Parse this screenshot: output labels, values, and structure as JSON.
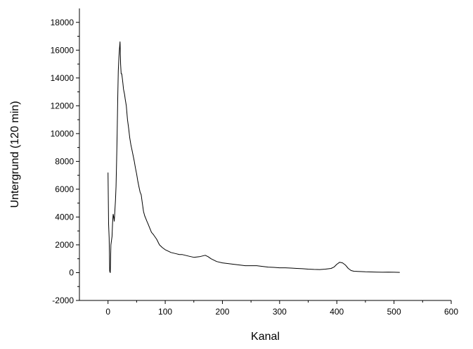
{
  "chart_data": {
    "type": "line",
    "title": "",
    "xlabel": "Kanal",
    "ylabel": "Untergrund (120 min)",
    "xlim": [
      -50,
      600
    ],
    "ylim": [
      -2000,
      19000
    ],
    "xticks": [
      0,
      100,
      200,
      300,
      400,
      500,
      600
    ],
    "yticks": [
      -2000,
      0,
      2000,
      4000,
      6000,
      8000,
      10000,
      12000,
      14000,
      16000,
      18000
    ],
    "grid": false,
    "legend": "none",
    "line_color": "#000000",
    "series": [
      {
        "x": [
          0,
          1,
          2,
          3,
          4,
          5,
          6,
          7,
          8,
          9,
          10,
          11,
          12,
          13,
          14,
          15,
          16,
          17,
          18,
          19,
          20,
          21,
          22,
          23,
          24,
          25,
          26,
          27,
          28,
          29,
          30,
          32,
          34,
          36,
          38,
          40,
          42,
          44,
          46,
          48,
          50,
          52,
          54,
          56,
          58,
          60,
          62,
          64,
          66,
          68,
          70,
          72,
          74,
          76,
          78,
          80,
          85,
          90,
          95,
          100,
          105,
          110,
          115,
          120,
          125,
          130,
          140,
          150,
          160,
          170,
          175,
          180,
          190,
          200,
          210,
          220,
          230,
          240,
          250,
          260,
          270,
          280,
          290,
          300,
          310,
          320,
          330,
          340,
          350,
          360,
          370,
          380,
          390,
          395,
          400,
          405,
          410,
          415,
          420,
          425,
          430,
          440,
          450,
          460,
          470,
          480,
          490,
          500,
          510
        ],
        "y": [
          7200,
          3500,
          2500,
          100,
          0,
          2000,
          2300,
          2600,
          3600,
          4200,
          4000,
          3700,
          4500,
          5200,
          6200,
          8000,
          10000,
          12500,
          14500,
          15500,
          16100,
          16600,
          15000,
          14300,
          14300,
          14000,
          13600,
          13200,
          13000,
          12800,
          12500,
          12000,
          11000,
          10400,
          9700,
          9200,
          8800,
          8400,
          8000,
          7500,
          7100,
          6600,
          6200,
          5800,
          5600,
          5000,
          4400,
          4100,
          3900,
          3700,
          3500,
          3300,
          3100,
          2900,
          2800,
          2700,
          2400,
          2000,
          1800,
          1650,
          1550,
          1450,
          1400,
          1350,
          1300,
          1300,
          1200,
          1100,
          1150,
          1250,
          1150,
          1000,
          800,
          700,
          650,
          600,
          550,
          500,
          500,
          500,
          450,
          400,
          380,
          350,
          350,
          330,
          300,
          280,
          250,
          230,
          220,
          250,
          300,
          400,
          600,
          750,
          700,
          550,
          300,
          150,
          100,
          80,
          60,
          50,
          40,
          30,
          40,
          30,
          20
        ]
      }
    ]
  }
}
